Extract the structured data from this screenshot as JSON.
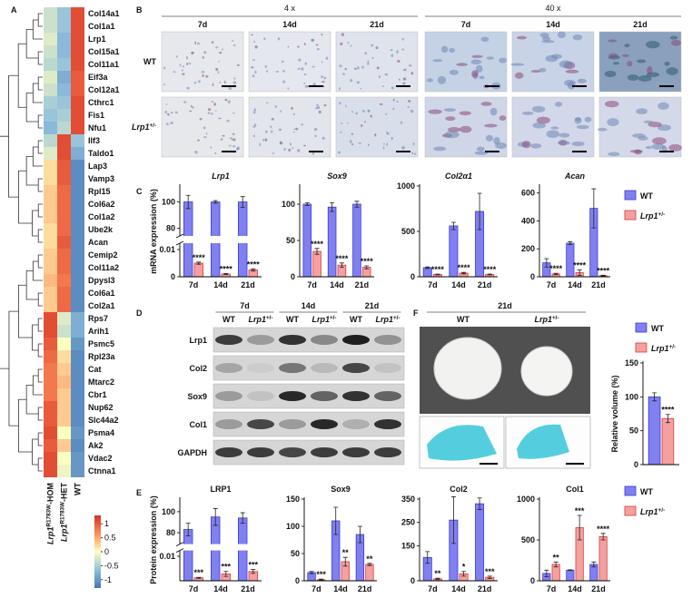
{
  "panel_labels": [
    "A",
    "B",
    "C",
    "D",
    "E",
    "F"
  ],
  "chart_data": [
    {
      "type": "heatmap",
      "rows": [
        "Col14a1",
        "Col1a1",
        "Lrp1",
        "Col15a1",
        "Col11a1",
        "Eif3a",
        "Col12a1",
        "Cthrc1",
        "Fis1",
        "Nfu1",
        "Ilf3",
        "Taldo1",
        "Lap3",
        "Vamp3",
        "Rpl15",
        "Col6a2",
        "Col1a2",
        "Ube2k",
        "Acan",
        "Cemip2",
        "Col11a2",
        "Dpysl3",
        "Col6a1",
        "Col2a1",
        "Rps7",
        "Arih1",
        "Psmc5",
        "Rpl23a",
        "Cat",
        "Mtarc2",
        "Cbr1",
        "Nup62",
        "Slc44a2",
        "Psma4",
        "Ak2",
        "Vdac2",
        "Ctnna1"
      ],
      "columns": [
        {
          "text": "Lrp1",
          "sup": "R1783W",
          "suffix": "-HOM",
          "italic": true
        },
        {
          "text": "Lrp1",
          "sup": "R1783W",
          "suffix": "-HET",
          "italic": true
        },
        "WT"
      ],
      "values": [
        [
          -0.3,
          -0.6,
          1.1
        ],
        [
          -0.3,
          -0.6,
          1.1
        ],
        [
          -0.2,
          -0.7,
          1.1
        ],
        [
          -0.3,
          -0.7,
          1.1
        ],
        [
          -0.4,
          -0.6,
          1.1
        ],
        [
          -0.2,
          -0.8,
          1.0
        ],
        [
          -0.3,
          -0.7,
          1.0
        ],
        [
          -0.5,
          -0.6,
          1.1
        ],
        [
          -0.6,
          -0.5,
          1.1
        ],
        [
          -0.7,
          -0.4,
          1.1
        ],
        [
          -0.4,
          1.1,
          -0.6
        ],
        [
          -0.2,
          1.1,
          -0.8
        ],
        [
          0.2,
          1.0,
          -1.1
        ],
        [
          0.2,
          1.0,
          -1.1
        ],
        [
          0.3,
          0.9,
          -1.1
        ],
        [
          0.3,
          0.9,
          -1.1
        ],
        [
          0.3,
          0.9,
          -1.1
        ],
        [
          0.2,
          0.9,
          -1.1
        ],
        [
          0.2,
          1.0,
          -1.1
        ],
        [
          0.3,
          0.9,
          -1.1
        ],
        [
          0.3,
          0.9,
          -1.1
        ],
        [
          0.4,
          0.8,
          -1.1
        ],
        [
          0.3,
          0.9,
          -1.1
        ],
        [
          0.3,
          0.9,
          -1.1
        ],
        [
          1.1,
          -0.2,
          -0.8
        ],
        [
          1.1,
          -0.3,
          -0.8
        ],
        [
          1.0,
          0.0,
          -1.0
        ],
        [
          0.9,
          0.2,
          -1.1
        ],
        [
          0.8,
          0.3,
          -1.1
        ],
        [
          0.8,
          0.4,
          -1.1
        ],
        [
          0.8,
          0.3,
          -1.1
        ],
        [
          1.0,
          0.3,
          -1.1
        ],
        [
          1.0,
          0.3,
          -1.1
        ],
        [
          1.1,
          0.0,
          -1.0
        ],
        [
          1.0,
          0.3,
          -1.1
        ],
        [
          1.1,
          0.0,
          -1.0
        ],
        [
          1.1,
          -0.1,
          -1.0
        ]
      ],
      "clim": [
        -1.3,
        1.3
      ],
      "cticks": [
        1,
        0.5,
        0,
        -0.5,
        -1
      ],
      "colors": [
        "#4575b4",
        "#91bfdb",
        "#ffffbf",
        "#fc8d59",
        "#d73027"
      ]
    },
    {
      "type": "bar",
      "title": "Lrp1",
      "italic_title": true,
      "ylabel": "mRNA expression (%)",
      "categories": [
        "7d",
        "14d",
        "21d"
      ],
      "segments": [
        {
          "ylim": [
            0,
            0.012
          ],
          "yticks": [
            0,
            0.01
          ]
        },
        {
          "ylim": [
            75,
            112
          ],
          "yticks": [
            80,
            100
          ]
        }
      ],
      "series": [
        {
          "name": "WT",
          "color": "#8080f0",
          "edge": "#3b3bcf",
          "values": [
            100,
            100,
            100
          ],
          "errors": [
            5,
            1,
            4
          ]
        },
        {
          "name": {
            "text": "Lrp1",
            "sup": "+/-",
            "italic": true
          },
          "color": "#f5a0a0",
          "edge": "#d43c3c",
          "values": [
            0.005,
            0.001,
            0.0025
          ],
          "errors": [
            0.0004,
            0.0002,
            0.0004
          ],
          "annotations": [
            "****",
            "****",
            "****"
          ]
        }
      ]
    },
    {
      "type": "bar",
      "title": "Sox9",
      "italic_title": true,
      "categories": [
        "7d",
        "14d",
        "21d"
      ],
      "ylim": [
        0,
        125
      ],
      "yticks": [
        0,
        50,
        100
      ],
      "series": [
        {
          "name": "WT",
          "color": "#8080f0",
          "edge": "#3b3bcf",
          "values": [
            100,
            96,
            100
          ],
          "errors": [
            2,
            6,
            4
          ]
        },
        {
          "name": {
            "text": "Lrp1",
            "sup": "+/-",
            "italic": true
          },
          "color": "#f5a0a0",
          "edge": "#d43c3c",
          "values": [
            35,
            16,
            13
          ],
          "errors": [
            4,
            3,
            2
          ],
          "annotations": [
            "****",
            "****",
            "****"
          ]
        }
      ]
    },
    {
      "type": "bar",
      "title": "Col2α1",
      "italic_title": true,
      "categories": [
        "7d",
        "14d",
        "21d"
      ],
      "ylim": [
        0,
        1000
      ],
      "yticks": [
        0,
        500,
        1000
      ],
      "series": [
        {
          "name": "WT",
          "color": "#8080f0",
          "edge": "#3b3bcf",
          "values": [
            100,
            560,
            720
          ],
          "errors": [
            8,
            40,
            200
          ]
        },
        {
          "name": {
            "text": "Lrp1",
            "sup": "+/-",
            "italic": true
          },
          "color": "#f5a0a0",
          "edge": "#d43c3c",
          "values": [
            25,
            40,
            25
          ],
          "errors": [
            5,
            8,
            5
          ],
          "annotations": [
            "****",
            "****",
            "****"
          ]
        }
      ]
    },
    {
      "type": "bar",
      "title": "Acan",
      "italic_title": true,
      "categories": [
        "7d",
        "14d",
        "21d"
      ],
      "ylim": [
        0,
        650
      ],
      "yticks": [
        0,
        200,
        400,
        600
      ],
      "legend": "right",
      "series": [
        {
          "name": "WT",
          "color": "#8080f0",
          "edge": "#3b3bcf",
          "values": [
            100,
            240,
            490
          ],
          "errors": [
            30,
            10,
            140
          ]
        },
        {
          "name": {
            "text": "Lrp1",
            "sup": "+/-",
            "italic": true
          },
          "color": "#f5a0a0",
          "edge": "#d43c3c",
          "values": [
            20,
            30,
            8
          ],
          "errors": [
            5,
            20,
            3
          ],
          "annotations": [
            "****",
            "****",
            "****"
          ]
        }
      ]
    },
    {
      "type": "bar",
      "ylabel": "Relative volume (%)",
      "categories": [
        null
      ],
      "ylim": [
        0,
        150
      ],
      "yticks": [
        0,
        50,
        100,
        150
      ],
      "legend": "top",
      "series": [
        {
          "name": "WT",
          "color": "#8080f0",
          "edge": "#3b3bcf",
          "values": [
            100
          ],
          "errors": [
            6
          ]
        },
        {
          "name": {
            "text": "Lrp1",
            "sup": "+/-",
            "italic": true
          },
          "color": "#f5a0a0",
          "edge": "#d43c3c",
          "values": [
            68
          ],
          "errors": [
            6
          ],
          "annotations": [
            "****"
          ]
        }
      ]
    },
    {
      "type": "bar",
      "title": "LRP1",
      "ylabel": "Protein expression (%)",
      "categories": [
        "7d",
        "14d",
        "21d"
      ],
      "segments": [
        {
          "ylim": [
            0,
            0.012
          ],
          "yticks": [
            0.01
          ]
        },
        {
          "ylim": [
            70,
            112
          ],
          "yticks": [
            80,
            100
          ]
        }
      ],
      "series": [
        {
          "name": "WT",
          "color": "#8080f0",
          "edge": "#3b3bcf",
          "values": [
            83,
            95,
            94
          ],
          "errors": [
            6,
            8,
            5
          ]
        },
        {
          "name": {
            "text": "Lrp1",
            "sup": "+/-",
            "italic": true
          },
          "color": "#f5a0a0",
          "edge": "#d43c3c",
          "values": [
            0.0012,
            0.0028,
            0.0038
          ],
          "errors": [
            0.0002,
            0.001,
            0.0008
          ],
          "annotations": [
            "***",
            "***",
            "***"
          ]
        }
      ]
    },
    {
      "type": "bar",
      "title": "Sox9",
      "categories": [
        "7d",
        "14d",
        "21d"
      ],
      "ylim": [
        0,
        150
      ],
      "yticks": [
        0,
        50,
        100,
        150
      ],
      "series": [
        {
          "name": "WT",
          "color": "#8080f0",
          "edge": "#3b3bcf",
          "values": [
            15,
            110,
            85
          ],
          "errors": [
            2,
            25,
            15
          ]
        },
        {
          "name": {
            "text": "Lrp1",
            "sup": "+/-",
            "italic": true
          },
          "color": "#f5a0a0",
          "edge": "#d43c3c",
          "values": [
            2,
            35,
            30
          ],
          "errors": [
            1,
            8,
            2
          ],
          "annotations": [
            "***",
            "**",
            "**"
          ]
        }
      ]
    },
    {
      "type": "bar",
      "title": "Col2",
      "categories": [
        "7d",
        "14d",
        "21d"
      ],
      "ylim": [
        0,
        350
      ],
      "yticks": [
        0,
        150,
        250,
        350
      ],
      "series": [
        {
          "name": "WT",
          "color": "#8080f0",
          "edge": "#3b3bcf",
          "values": [
            100,
            260,
            330
          ],
          "errors": [
            25,
            100,
            25
          ]
        },
        {
          "name": {
            "text": "Lrp1",
            "sup": "+/-",
            "italic": true
          },
          "color": "#f5a0a0",
          "edge": "#d43c3c",
          "values": [
            8,
            30,
            15
          ],
          "errors": [
            3,
            10,
            5
          ],
          "annotations": [
            "**",
            "*",
            "***"
          ]
        }
      ]
    },
    {
      "type": "bar",
      "title": "Col1",
      "categories": [
        "7d",
        "14d",
        "21d"
      ],
      "ylim": [
        0,
        1000
      ],
      "yticks": [
        0,
        500,
        1000
      ],
      "legend": "right",
      "series": [
        {
          "name": "WT",
          "color": "#8080f0",
          "edge": "#3b3bcf",
          "values": [
            90,
            130,
            200
          ],
          "errors": [
            40,
            5,
            30
          ]
        },
        {
          "name": {
            "text": "Lrp1",
            "sup": "+/-",
            "italic": true
          },
          "color": "#f5a0a0",
          "edge": "#d43c3c",
          "values": [
            200,
            650,
            540
          ],
          "errors": [
            30,
            150,
            40
          ],
          "annotations": [
            "**",
            "***",
            "****"
          ]
        }
      ]
    }
  ],
  "histology": {
    "magnifications": [
      "4 x",
      "40 x"
    ],
    "days": [
      "7d",
      "14d",
      "21d",
      "7d",
      "14d",
      "21d"
    ],
    "genotypes": [
      "WT",
      {
        "text": "Lrp1",
        "sup": "+/-",
        "italic": true
      }
    ]
  },
  "western": {
    "days": [
      "7d",
      "14d",
      "21d"
    ],
    "genotypes": [
      "WT",
      {
        "text": "Lrp1",
        "sup": "+/-",
        "italic": true
      },
      "WT",
      {
        "text": "Lrp1",
        "sup": "+/-",
        "italic": true
      },
      "WT",
      {
        "text": "Lrp1",
        "sup": "+/-",
        "italic": true
      }
    ],
    "proteins": [
      "Lrp1",
      "Col2",
      "Sox9",
      "Col1",
      "GAPDH"
    ]
  },
  "gross": {
    "title": "21d",
    "genotypes": [
      "WT",
      {
        "text": "Lrp1",
        "sup": "+/-",
        "italic": true
      }
    ]
  }
}
